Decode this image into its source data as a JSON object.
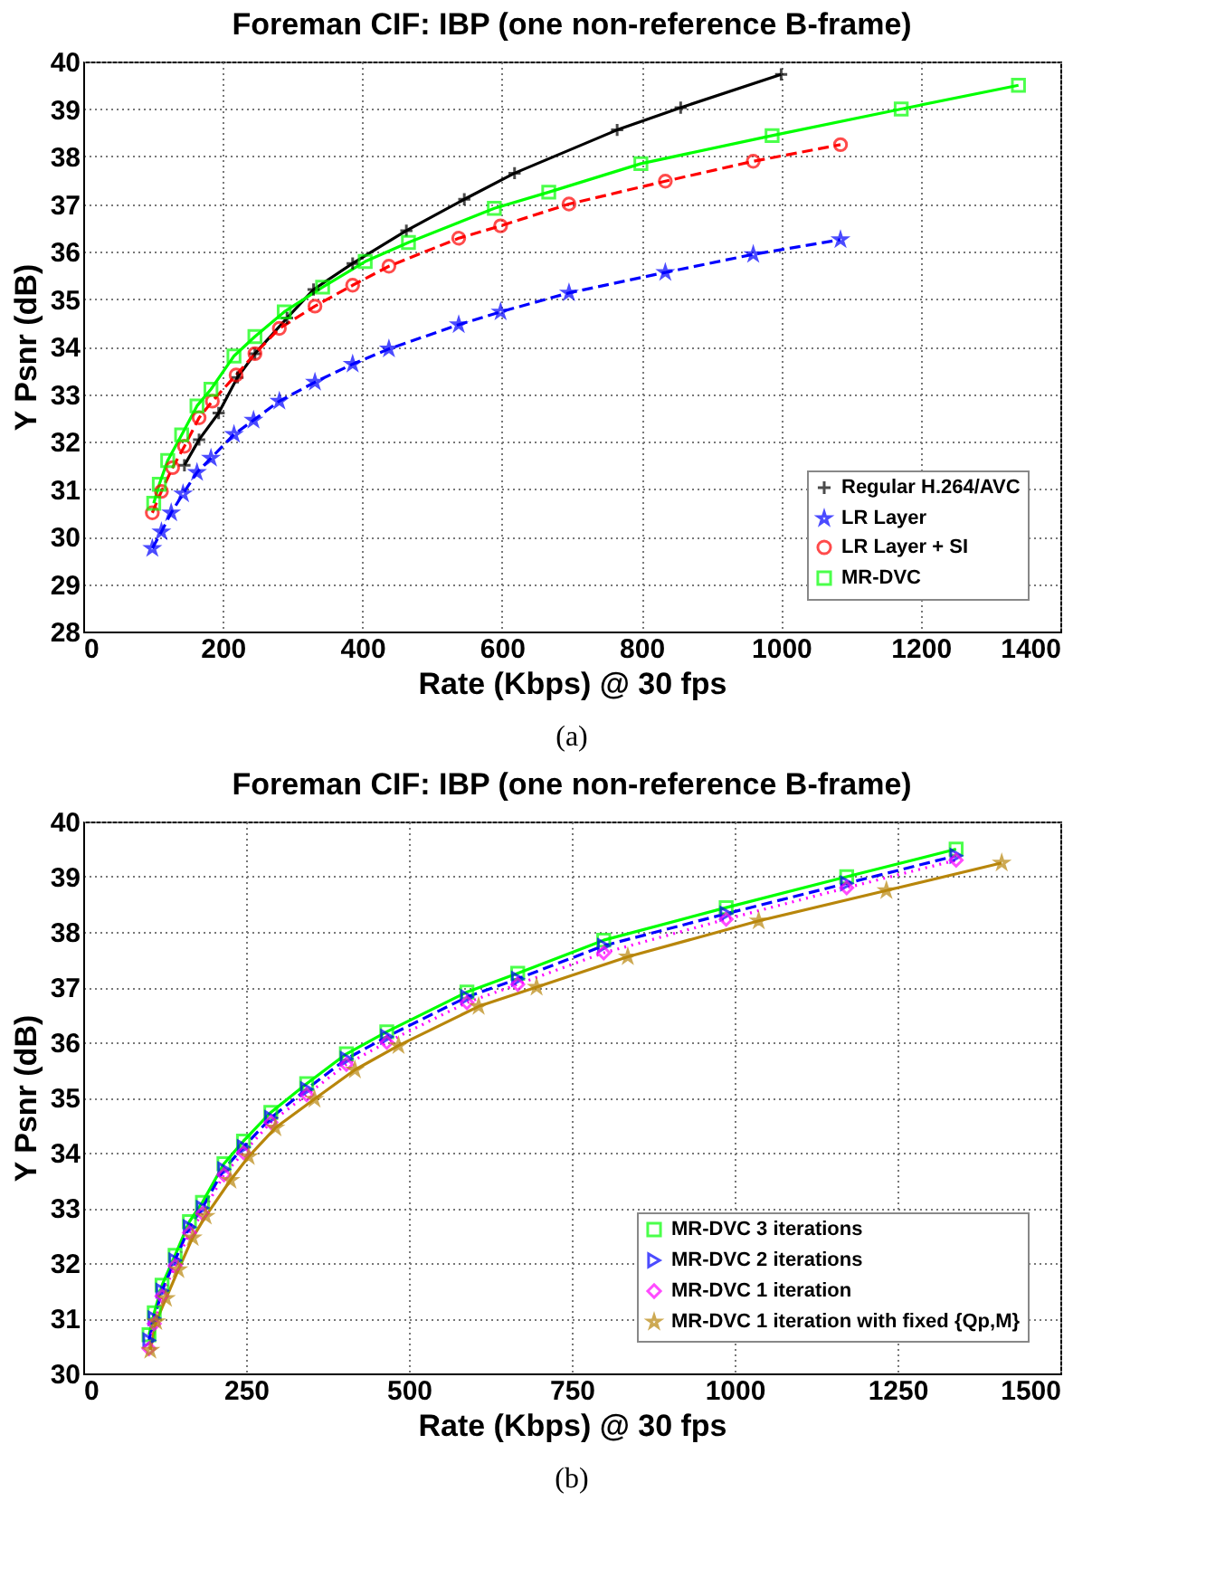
{
  "chart_data": [
    {
      "type": "line",
      "title": "Foreman CIF: IBP (one non-reference B-frame)",
      "xlabel": "Rate (Kbps) @ 30 fps",
      "ylabel": "Y Psnr (dB)",
      "annotations": [
        "(a)"
      ],
      "xlim": [
        0,
        1400
      ],
      "xticks": [
        0,
        200,
        400,
        600,
        800,
        1000,
        1200,
        1400
      ],
      "ylim": [
        28,
        40
      ],
      "yticks": [
        28,
        29,
        30,
        31,
        32,
        33,
        34,
        35,
        36,
        37,
        38,
        39,
        40
      ],
      "grid": true,
      "legend": "bottom right",
      "series": [
        {
          "name": "Regular H.264/AVC",
          "color": "#000000",
          "marker": "cross",
          "line_style": "solid",
          "x": [
            145,
            166,
            194,
            221,
            246,
            292,
            330,
            386,
            463,
            546,
            618,
            765,
            856,
            1000
          ],
          "values": [
            31.5,
            32.04,
            32.6,
            33.35,
            33.85,
            34.6,
            35.2,
            35.75,
            36.44,
            37.1,
            37.65,
            38.56,
            39.03,
            39.73
          ]
        },
        {
          "name": "LR Layer",
          "color": "#0000ff",
          "marker": "star",
          "line_style": "dashed",
          "x": [
            99,
            112,
            126,
            143,
            163,
            183,
            216,
            244,
            281,
            332,
            386,
            438,
            538,
            598,
            696,
            834,
            960,
            1085
          ],
          "values": [
            29.75,
            30.1,
            30.5,
            30.9,
            31.35,
            31.65,
            32.15,
            32.45,
            32.85,
            33.25,
            33.63,
            33.95,
            34.46,
            34.73,
            35.13,
            35.56,
            35.94,
            36.25
          ]
        },
        {
          "name": "LR Layer + SI",
          "color": "#ff0000",
          "marker": "circle",
          "line_style": "dashed",
          "x": [
            99,
            112,
            128,
            145,
            166,
            185,
            219,
            246,
            281,
            332,
            386,
            438,
            538,
            598,
            696,
            834,
            960,
            1085
          ],
          "values": [
            30.5,
            30.95,
            31.45,
            31.9,
            32.5,
            32.85,
            33.4,
            33.85,
            34.38,
            34.85,
            35.29,
            35.69,
            36.28,
            36.54,
            37.0,
            37.48,
            37.9,
            38.25
          ]
        },
        {
          "name": "MR-DVC",
          "color": "#00ff00",
          "marker": "square",
          "line_style": "solid",
          "x": [
            101,
            109,
            121,
            141,
            163,
            183,
            216,
            246,
            288,
            343,
            404,
            466,
            589,
            667,
            799,
            987,
            1172,
            1340
          ],
          "values": [
            30.7,
            31.1,
            31.6,
            32.14,
            32.75,
            33.1,
            33.8,
            34.21,
            34.73,
            35.25,
            35.79,
            36.19,
            36.91,
            37.25,
            37.85,
            38.44,
            39.0,
            39.5
          ]
        }
      ]
    },
    {
      "type": "line",
      "title": "Foreman CIF: IBP (one non-reference B-frame)",
      "xlabel": "Rate (Kbps) @ 30 fps",
      "ylabel": "Y Psnr (dB)",
      "annotations": [
        "(b)"
      ],
      "xlim": [
        0,
        1500
      ],
      "xticks": [
        0,
        250,
        500,
        750,
        1000,
        1250,
        1500
      ],
      "ylim": [
        30,
        40
      ],
      "yticks": [
        30,
        31,
        32,
        33,
        34,
        35,
        36,
        37,
        38,
        39,
        40
      ],
      "grid": true,
      "legend": "bottom right",
      "series": [
        {
          "name": "MR-DVC 3 iterations",
          "color": "#00ff00",
          "marker": "square",
          "line_style": "solid",
          "x": [
            101,
            109,
            121,
            141,
            163,
            183,
            216,
            246,
            288,
            343,
            404,
            466,
            589,
            667,
            799,
            987,
            1172,
            1340
          ],
          "values": [
            30.7,
            31.1,
            31.6,
            32.14,
            32.75,
            33.1,
            33.8,
            34.21,
            34.73,
            35.25,
            35.79,
            36.19,
            36.91,
            37.25,
            37.85,
            38.44,
            39.0,
            39.5
          ]
        },
        {
          "name": "MR-DVC 2 iterations",
          "color": "#0000ff",
          "marker": "triangle",
          "line_style": "dashed",
          "x": [
            101,
            109,
            121,
            141,
            163,
            183,
            216,
            246,
            288,
            343,
            404,
            466,
            589,
            667,
            799,
            987,
            1172,
            1340
          ],
          "values": [
            30.6,
            31.0,
            31.5,
            32.05,
            32.65,
            33.0,
            33.7,
            34.1,
            34.63,
            35.15,
            35.7,
            36.1,
            36.82,
            37.15,
            37.75,
            38.33,
            38.88,
            39.38
          ]
        },
        {
          "name": "MR-DVC 1 iteration",
          "color": "#ff00ff",
          "marker": "diamond",
          "line_style": "dotted",
          "x": [
            101,
            109,
            121,
            141,
            163,
            183,
            216,
            246,
            288,
            343,
            404,
            466,
            589,
            667,
            799,
            987,
            1172,
            1340
          ],
          "values": [
            30.45,
            30.9,
            31.4,
            31.95,
            32.55,
            32.9,
            33.6,
            34.0,
            34.55,
            35.05,
            35.6,
            36.0,
            36.72,
            37.05,
            37.62,
            38.23,
            38.8,
            39.3
          ]
        },
        {
          "name": "MR-DVC 1 iteration with fixed {Qp,M}",
          "color": "#b8860b",
          "marker": "star",
          "line_style": "solid",
          "x": [
            103,
            112,
            127,
            146,
            168,
            188,
            226,
            254,
            295,
            355,
            417,
            484,
            607,
            696,
            836,
            1037,
            1233,
            1410
          ],
          "values": [
            30.42,
            30.94,
            31.36,
            31.88,
            32.46,
            32.85,
            33.5,
            33.93,
            34.45,
            34.97,
            35.5,
            35.94,
            36.65,
            37.0,
            37.55,
            38.2,
            38.75,
            39.25
          ]
        }
      ]
    }
  ]
}
